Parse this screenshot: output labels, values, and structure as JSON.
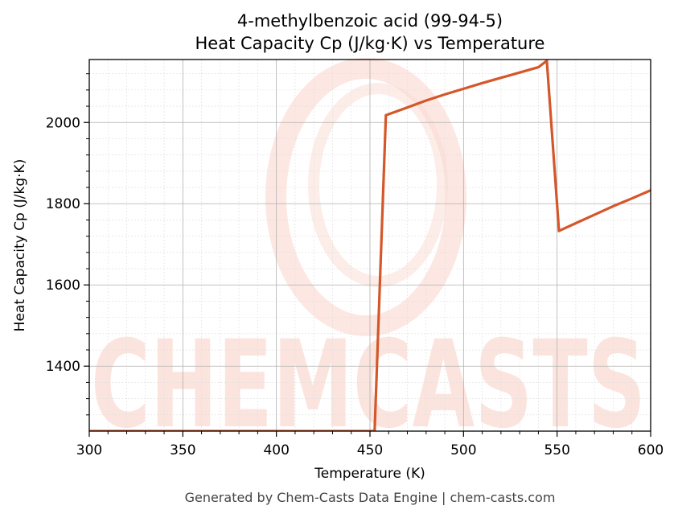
{
  "chart_data": {
    "type": "line",
    "title": "4-methylbenzoic acid (99-94-5)",
    "subtitle": "Heat Capacity Cp (J/kg·K) vs Temperature",
    "xlabel": "Temperature (K)",
    "ylabel": "Heat Capacity Cp (J/kg·K)",
    "xlim": [
      300,
      600
    ],
    "ylim": [
      1240,
      2155
    ],
    "xticks": [
      300,
      350,
      400,
      450,
      500,
      550,
      600
    ],
    "yticks": [
      1400,
      1600,
      1800,
      2000
    ],
    "grid": true,
    "series": [
      {
        "color": "#d4572a",
        "x": [
          300,
          350,
          400,
          450,
          452.5,
          458.5,
          470,
          480,
          490,
          500,
          510,
          520,
          530,
          540,
          544.5,
          551,
          560,
          570,
          580,
          590,
          600
        ],
        "y": [
          1240,
          1240,
          1240,
          1240,
          1240,
          2018,
          2037,
          2054,
          2069,
          2083,
          2097,
          2110,
          2123,
          2136,
          2152,
          1733,
          1752,
          1773,
          1794,
          1813,
          1833
        ]
      }
    ]
  },
  "watermark": "CHEMCASTS",
  "footer": "Generated by Chem-Casts Data Engine | chem-casts.com"
}
